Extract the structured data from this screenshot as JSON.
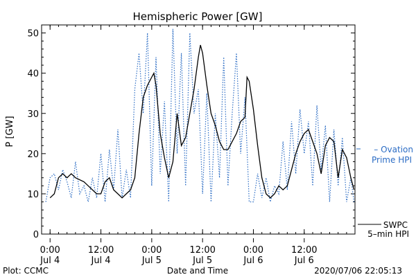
{
  "chart_data": {
    "type": "line",
    "title": "Hemispheric Power [GW]",
    "xlabel": "Date and Time",
    "ylabel": "P [GW]",
    "ylim": [
      0,
      52
    ],
    "yticks": [
      0,
      10,
      20,
      30,
      40,
      50
    ],
    "xlim": [
      "2020-07-03T22:00",
      "2020-07-06T23:59"
    ],
    "xticks": [
      {
        "t": "2020-07-04T00:00",
        "time": "0:00",
        "date": "Jul 4"
      },
      {
        "t": "2020-07-04T12:00",
        "time": "12:00",
        "date": "Jul 4"
      },
      {
        "t": "2020-07-05T00:00",
        "time": "0:00",
        "date": "Jul 5"
      },
      {
        "t": "2020-07-05T12:00",
        "time": "12:00",
        "date": "Jul 5"
      },
      {
        "t": "2020-07-06T00:00",
        "time": "0:00",
        "date": "Jul 6"
      },
      {
        "t": "2020-07-06T12:00",
        "time": "12:00",
        "date": "Jul 6"
      }
    ],
    "grid": false,
    "legend_position": "right",
    "series": [
      {
        "name": "SWPC 5-min HPI",
        "label_lines": [
          "SWPC",
          "5–min HPI"
        ],
        "color": "#000000",
        "style": "solid",
        "points": [
          [
            "2020-07-04T00:00",
            9
          ],
          [
            "2020-07-04T01:00",
            10
          ],
          [
            "2020-07-04T02:00",
            14
          ],
          [
            "2020-07-04T03:00",
            15
          ],
          [
            "2020-07-04T04:00",
            14
          ],
          [
            "2020-07-04T05:00",
            15
          ],
          [
            "2020-07-04T06:00",
            14
          ],
          [
            "2020-07-04T08:00",
            13
          ],
          [
            "2020-07-04T09:00",
            12
          ],
          [
            "2020-07-04T10:00",
            11
          ],
          [
            "2020-07-04T11:00",
            10
          ],
          [
            "2020-07-04T12:00",
            10
          ],
          [
            "2020-07-04T13:00",
            13
          ],
          [
            "2020-07-04T14:00",
            14
          ],
          [
            "2020-07-04T15:00",
            11
          ],
          [
            "2020-07-04T16:00",
            10
          ],
          [
            "2020-07-04T17:00",
            9
          ],
          [
            "2020-07-04T18:00",
            10
          ],
          [
            "2020-07-04T19:00",
            11
          ],
          [
            "2020-07-04T20:00",
            14
          ],
          [
            "2020-07-04T21:00",
            25
          ],
          [
            "2020-07-04T22:00",
            34
          ],
          [
            "2020-07-04T23:00",
            37
          ],
          [
            "2020-07-05T00:00",
            39
          ],
          [
            "2020-07-05T00:30",
            40
          ],
          [
            "2020-07-05T01:00",
            37
          ],
          [
            "2020-07-05T02:00",
            25
          ],
          [
            "2020-07-05T03:00",
            19
          ],
          [
            "2020-07-05T04:00",
            14
          ],
          [
            "2020-07-05T05:00",
            18
          ],
          [
            "2020-07-05T06:00",
            30
          ],
          [
            "2020-07-05T07:00",
            22
          ],
          [
            "2020-07-05T08:00",
            24
          ],
          [
            "2020-07-05T09:00",
            30
          ],
          [
            "2020-07-05T10:00",
            36
          ],
          [
            "2020-07-05T11:00",
            44
          ],
          [
            "2020-07-05T11:30",
            47
          ],
          [
            "2020-07-05T12:00",
            45
          ],
          [
            "2020-07-05T13:00",
            37
          ],
          [
            "2020-07-05T14:00",
            30
          ],
          [
            "2020-07-05T15:00",
            27
          ],
          [
            "2020-07-05T16:00",
            23
          ],
          [
            "2020-07-05T17:00",
            21
          ],
          [
            "2020-07-05T18:00",
            21
          ],
          [
            "2020-07-05T19:00",
            23
          ],
          [
            "2020-07-05T20:00",
            25
          ],
          [
            "2020-07-05T21:00",
            28
          ],
          [
            "2020-07-05T22:00",
            29
          ],
          [
            "2020-07-05T22:30",
            39
          ],
          [
            "2020-07-05T23:00",
            38
          ],
          [
            "2020-07-06T00:00",
            31
          ],
          [
            "2020-07-06T01:00",
            22
          ],
          [
            "2020-07-06T02:00",
            14
          ],
          [
            "2020-07-06T03:00",
            10
          ],
          [
            "2020-07-06T04:00",
            9
          ],
          [
            "2020-07-06T05:00",
            10
          ],
          [
            "2020-07-06T06:00",
            12
          ],
          [
            "2020-07-06T07:00",
            11
          ],
          [
            "2020-07-06T08:00",
            12
          ],
          [
            "2020-07-06T09:00",
            16
          ],
          [
            "2020-07-06T10:00",
            20
          ],
          [
            "2020-07-06T11:00",
            23
          ],
          [
            "2020-07-06T12:00",
            25
          ],
          [
            "2020-07-06T13:00",
            26
          ],
          [
            "2020-07-06T14:00",
            23
          ],
          [
            "2020-07-06T15:00",
            20
          ],
          [
            "2020-07-06T16:00",
            15
          ],
          [
            "2020-07-06T17:00",
            22
          ],
          [
            "2020-07-06T18:00",
            24
          ],
          [
            "2020-07-06T19:00",
            23
          ],
          [
            "2020-07-06T20:00",
            14
          ],
          [
            "2020-07-06T21:00",
            21
          ],
          [
            "2020-07-06T22:00",
            19
          ],
          [
            "2020-07-06T23:00",
            14
          ],
          [
            "2020-07-06T23:45",
            11
          ]
        ]
      },
      {
        "name": "Ovation Prime HPI",
        "label_lines": [
          "– Ovation",
          "Prime HPI"
        ],
        "color": "#2b6cc4",
        "style": "dotted",
        "points": [
          [
            "2020-07-03T23:00",
            8
          ],
          [
            "2020-07-04T00:00",
            14
          ],
          [
            "2020-07-04T01:00",
            15
          ],
          [
            "2020-07-04T02:00",
            11
          ],
          [
            "2020-07-04T03:00",
            16
          ],
          [
            "2020-07-04T04:00",
            13
          ],
          [
            "2020-07-04T05:00",
            9
          ],
          [
            "2020-07-04T06:00",
            18
          ],
          [
            "2020-07-04T07:00",
            10
          ],
          [
            "2020-07-04T08:00",
            12
          ],
          [
            "2020-07-04T09:00",
            8
          ],
          [
            "2020-07-04T10:00",
            14
          ],
          [
            "2020-07-04T11:00",
            9
          ],
          [
            "2020-07-04T12:00",
            20
          ],
          [
            "2020-07-04T13:00",
            8
          ],
          [
            "2020-07-04T14:00",
            21
          ],
          [
            "2020-07-04T15:00",
            11
          ],
          [
            "2020-07-04T16:00",
            26
          ],
          [
            "2020-07-04T17:00",
            9
          ],
          [
            "2020-07-04T18:00",
            16
          ],
          [
            "2020-07-04T19:00",
            9
          ],
          [
            "2020-07-04T20:00",
            36
          ],
          [
            "2020-07-04T21:00",
            45
          ],
          [
            "2020-07-04T22:00",
            30
          ],
          [
            "2020-07-04T23:00",
            50
          ],
          [
            "2020-07-05T00:00",
            12
          ],
          [
            "2020-07-05T01:00",
            44
          ],
          [
            "2020-07-05T02:00",
            15
          ],
          [
            "2020-07-05T03:00",
            33
          ],
          [
            "2020-07-05T04:00",
            8
          ],
          [
            "2020-07-05T05:00",
            51
          ],
          [
            "2020-07-05T06:00",
            20
          ],
          [
            "2020-07-05T07:00",
            45
          ],
          [
            "2020-07-05T08:00",
            12
          ],
          [
            "2020-07-05T09:00",
            50
          ],
          [
            "2020-07-05T10:00",
            30
          ],
          [
            "2020-07-05T11:00",
            36
          ],
          [
            "2020-07-05T12:00",
            10
          ],
          [
            "2020-07-05T13:00",
            35
          ],
          [
            "2020-07-05T14:00",
            8
          ],
          [
            "2020-07-05T15:00",
            30
          ],
          [
            "2020-07-05T16:00",
            14
          ],
          [
            "2020-07-05T17:00",
            44
          ],
          [
            "2020-07-05T18:00",
            12
          ],
          [
            "2020-07-05T19:00",
            30
          ],
          [
            "2020-07-05T20:00",
            45
          ],
          [
            "2020-07-05T21:00",
            20
          ],
          [
            "2020-07-05T22:00",
            34
          ],
          [
            "2020-07-05T23:00",
            8
          ],
          [
            "2020-07-06T00:00",
            8
          ],
          [
            "2020-07-06T01:00",
            15
          ],
          [
            "2020-07-06T02:00",
            9
          ],
          [
            "2020-07-06T03:00",
            14
          ],
          [
            "2020-07-06T04:00",
            8
          ],
          [
            "2020-07-06T05:00",
            12
          ],
          [
            "2020-07-06T06:00",
            10
          ],
          [
            "2020-07-06T07:00",
            23
          ],
          [
            "2020-07-06T08:00",
            11
          ],
          [
            "2020-07-06T09:00",
            28
          ],
          [
            "2020-07-06T10:00",
            15
          ],
          [
            "2020-07-06T11:00",
            31
          ],
          [
            "2020-07-06T12:00",
            20
          ],
          [
            "2020-07-06T13:00",
            28
          ],
          [
            "2020-07-06T14:00",
            12
          ],
          [
            "2020-07-06T15:00",
            32
          ],
          [
            "2020-07-06T16:00",
            16
          ],
          [
            "2020-07-06T17:00",
            27
          ],
          [
            "2020-07-06T18:00",
            8
          ],
          [
            "2020-07-06T19:00",
            26
          ],
          [
            "2020-07-06T20:00",
            12
          ],
          [
            "2020-07-06T21:00",
            24
          ],
          [
            "2020-07-06T22:00",
            8
          ],
          [
            "2020-07-06T23:00",
            14
          ],
          [
            "2020-07-06T23:45",
            8
          ]
        ]
      }
    ]
  },
  "footer": {
    "left": "Plot: CCMC",
    "right": "2020/07/06 22:05:13"
  }
}
